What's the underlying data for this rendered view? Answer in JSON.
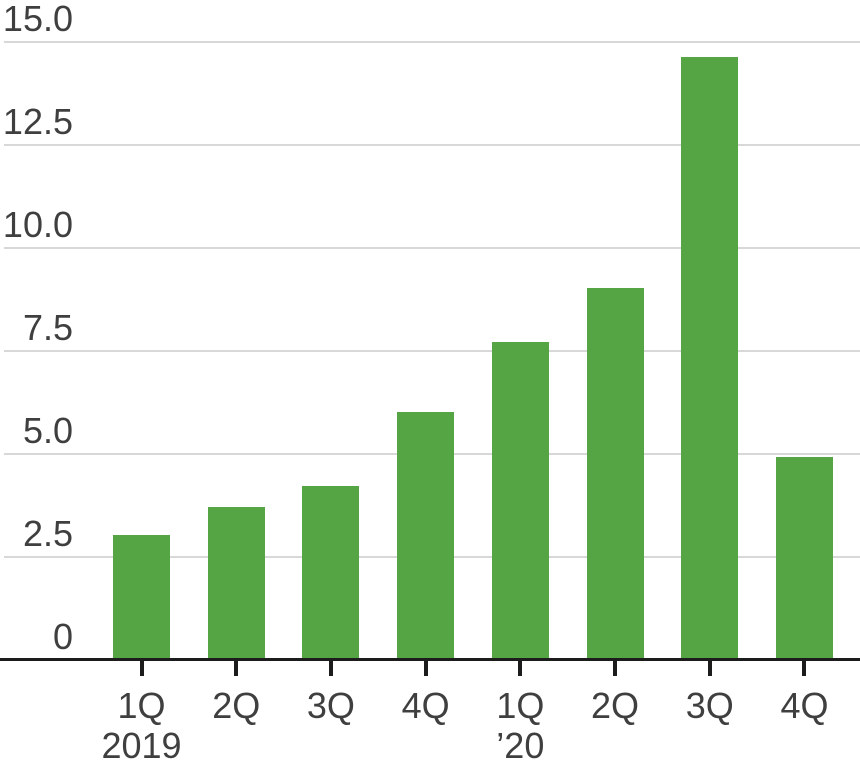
{
  "chart_data": {
    "type": "bar",
    "title": "",
    "xlabel": "",
    "ylabel": "",
    "categories": [
      "1Q",
      "2Q",
      "3Q",
      "4Q",
      "1Q",
      "2Q",
      "3Q",
      "4Q"
    ],
    "year_labels": [
      {
        "index": 0,
        "label": "2019"
      },
      {
        "index": 4,
        "label": "’20"
      }
    ],
    "values": [
      3.0,
      3.7,
      4.2,
      6.0,
      7.7,
      9.0,
      14.6,
      4.9
    ],
    "ylim": [
      0,
      15
    ],
    "yticks": [
      {
        "value": 0,
        "label": "0"
      },
      {
        "value": 2.5,
        "label": "2.5"
      },
      {
        "value": 5,
        "label": "5.0"
      },
      {
        "value": 7.5,
        "label": "7.5"
      },
      {
        "value": 10,
        "label": "10.0"
      },
      {
        "value": 12.5,
        "label": "12.5"
      },
      {
        "value": 15,
        "label": "15.0"
      }
    ],
    "grid": true,
    "legend": false,
    "colors": {
      "bar": "#55a545",
      "gridline": "#d8d8d8",
      "axis": "#1c1c1c",
      "tick_label": "#3f3f3f"
    }
  }
}
